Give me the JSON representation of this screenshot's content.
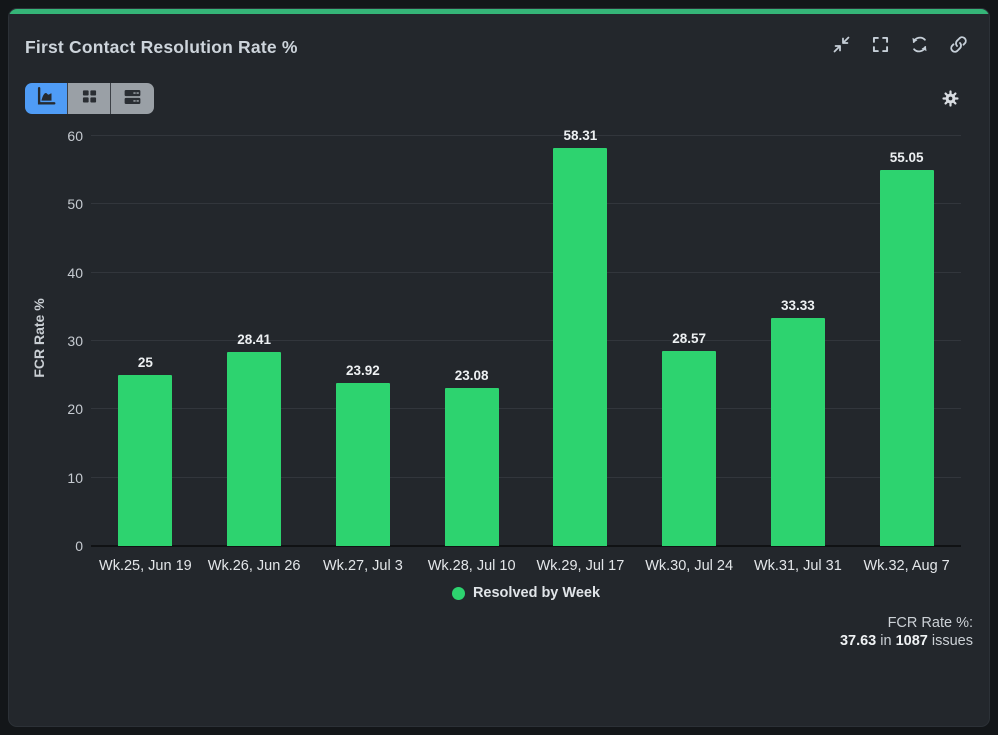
{
  "header": {
    "title": "First Contact Resolution Rate %",
    "action_icons": [
      "minimize-icon",
      "fullscreen-icon",
      "refresh-icon",
      "link-icon"
    ]
  },
  "toolbar": {
    "view_switcher": {
      "options": [
        "bar-chart-view",
        "table-view",
        "rows-view"
      ],
      "active": "bar-chart-view"
    },
    "settings_icon": "gear-icon"
  },
  "chart_data": {
    "type": "bar",
    "title": "First Contact Resolution Rate %",
    "categories": [
      "Wk.25, Jun 19",
      "Wk.26, Jun 26",
      "Wk.27, Jul 3",
      "Wk.28, Jul 10",
      "Wk.29, Jul 17",
      "Wk.30, Jul 24",
      "Wk.31, Jul 31",
      "Wk.32, Aug 7"
    ],
    "values": [
      25,
      28.41,
      23.92,
      23.08,
      58.31,
      28.57,
      33.33,
      55.05
    ],
    "value_labels": [
      "25",
      "28.41",
      "23.92",
      "23.08",
      "58.31",
      "28.57",
      "33.33",
      "55.05"
    ],
    "xlabel": "",
    "ylabel": "FCR Rate %",
    "ylim": [
      0,
      60
    ],
    "yticks": [
      0,
      10,
      20,
      30,
      40,
      50,
      60
    ],
    "grid": true,
    "bar_color": "#2dd36f",
    "legend": {
      "position": "bottom",
      "entries": [
        {
          "label": "Resolved by Week",
          "color": "#2dd36f"
        }
      ]
    }
  },
  "summary": {
    "label": "FCR Rate %:",
    "value": "37.63",
    "infix": " in ",
    "count": "1087",
    "suffix": " issues"
  },
  "colors": {
    "accent": "#35b578",
    "card_background": "#23272c",
    "page_background": "#131619",
    "active_toggle_blue": "#4f9cf6",
    "inactive_toggle_gray": "#9aa0a6"
  }
}
